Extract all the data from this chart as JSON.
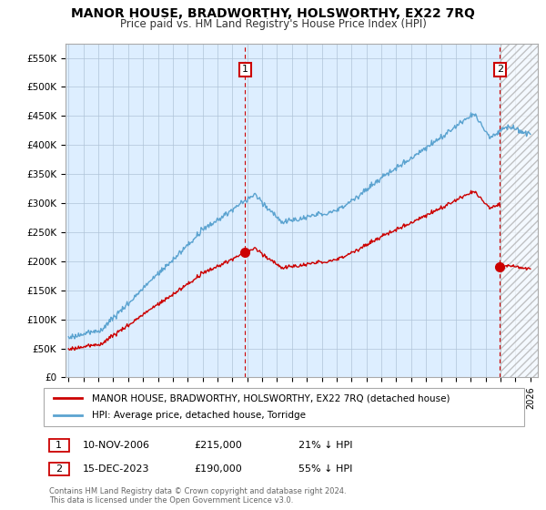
{
  "title": "MANOR HOUSE, BRADWORTHY, HOLSWORTHY, EX22 7RQ",
  "subtitle": "Price paid vs. HM Land Registry's House Price Index (HPI)",
  "hpi_color": "#5ba3d0",
  "price_color": "#cc0000",
  "background_color": "#ffffff",
  "plot_bg_color": "#ddeeff",
  "grid_color": "#b0c4d8",
  "ylim": [
    0,
    575000
  ],
  "yticks": [
    0,
    50000,
    100000,
    150000,
    200000,
    250000,
    300000,
    350000,
    400000,
    450000,
    500000,
    550000
  ],
  "xlim_start": 1994.8,
  "xlim_end": 2026.5,
  "hatch_start": 2024.0,
  "transaction1_x": 2006.86,
  "transaction1_y": 215000,
  "transaction1_label": "1",
  "transaction2_x": 2023.96,
  "transaction2_y": 190000,
  "transaction2_label": "2",
  "legend_label1": "MANOR HOUSE, BRADWORTHY, HOLSWORTHY, EX22 7RQ (detached house)",
  "legend_label2": "HPI: Average price, detached house, Torridge",
  "annotation1_date": "10-NOV-2006",
  "annotation1_price": "£215,000",
  "annotation1_pct": "21% ↓ HPI",
  "annotation2_date": "15-DEC-2023",
  "annotation2_price": "£190,000",
  "annotation2_pct": "55% ↓ HPI",
  "footer": "Contains HM Land Registry data © Crown copyright and database right 2024.\nThis data is licensed under the Open Government Licence v3.0."
}
